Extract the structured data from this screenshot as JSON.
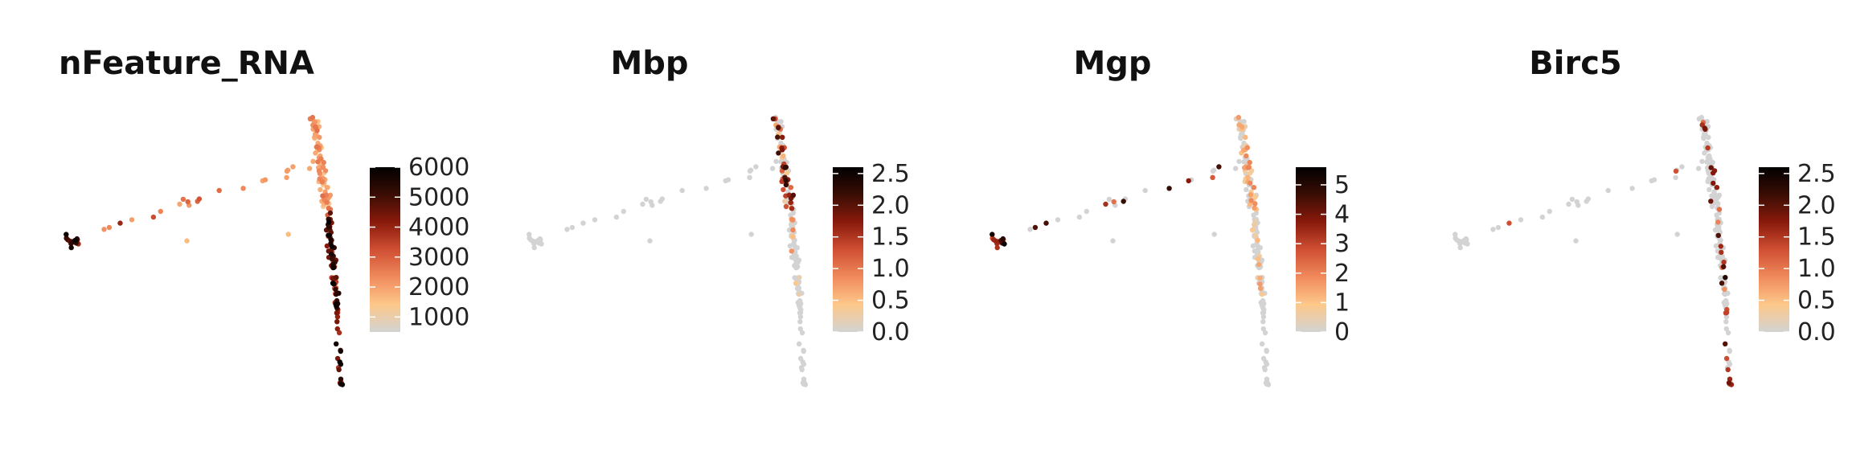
{
  "colors": {
    "background": "#ffffff",
    "scale": [
      "#d3d3d3",
      "#fdc88a",
      "#f08a5c",
      "#cf4f33",
      "#8a1a0c",
      "#3a0d04",
      "#000000"
    ]
  },
  "chart_data": [
    {
      "type": "scatter",
      "title": "nFeature_RNA",
      "color_range": [
        500,
        6000
      ],
      "legend_ticks": [
        "1000",
        "2000",
        "3000",
        "4000",
        "5000",
        "6000"
      ],
      "legend_tick_values": [
        1000,
        2000,
        3000,
        4000,
        5000,
        6000
      ],
      "legend_position": "right",
      "x_range": [
        -12,
        6
      ],
      "y_range": [
        -12,
        10
      ],
      "axes": "none",
      "grid": false
    },
    {
      "type": "scatter",
      "title": "Mbp",
      "color_range": [
        0,
        2.6
      ],
      "legend_ticks": [
        "0.0",
        "0.5",
        "1.0",
        "1.5",
        "2.0",
        "2.5"
      ],
      "legend_tick_values": [
        0,
        0.5,
        1.0,
        1.5,
        2.0,
        2.5
      ],
      "legend_position": "right",
      "x_range": [
        -12,
        6
      ],
      "y_range": [
        -12,
        10
      ],
      "axes": "none",
      "grid": false
    },
    {
      "type": "scatter",
      "title": "Mgp",
      "color_range": [
        0,
        5.6
      ],
      "legend_ticks": [
        "0",
        "1",
        "2",
        "3",
        "4",
        "5"
      ],
      "legend_tick_values": [
        0,
        1,
        2,
        3,
        4,
        5
      ],
      "legend_position": "right",
      "x_range": [
        -12,
        6
      ],
      "y_range": [
        -12,
        10
      ],
      "axes": "none",
      "grid": false
    },
    {
      "type": "scatter",
      "title": "Birc5",
      "color_range": [
        0,
        2.6
      ],
      "legend_ticks": [
        "0.0",
        "0.5",
        "1.0",
        "1.5",
        "2.0",
        "2.5"
      ],
      "legend_tick_values": [
        0,
        0.5,
        1.0,
        1.5,
        2.0,
        2.5
      ],
      "legend_position": "right",
      "x_range": [
        -12,
        6
      ],
      "y_range": [
        -12,
        10
      ],
      "axes": "none",
      "grid": false
    }
  ]
}
